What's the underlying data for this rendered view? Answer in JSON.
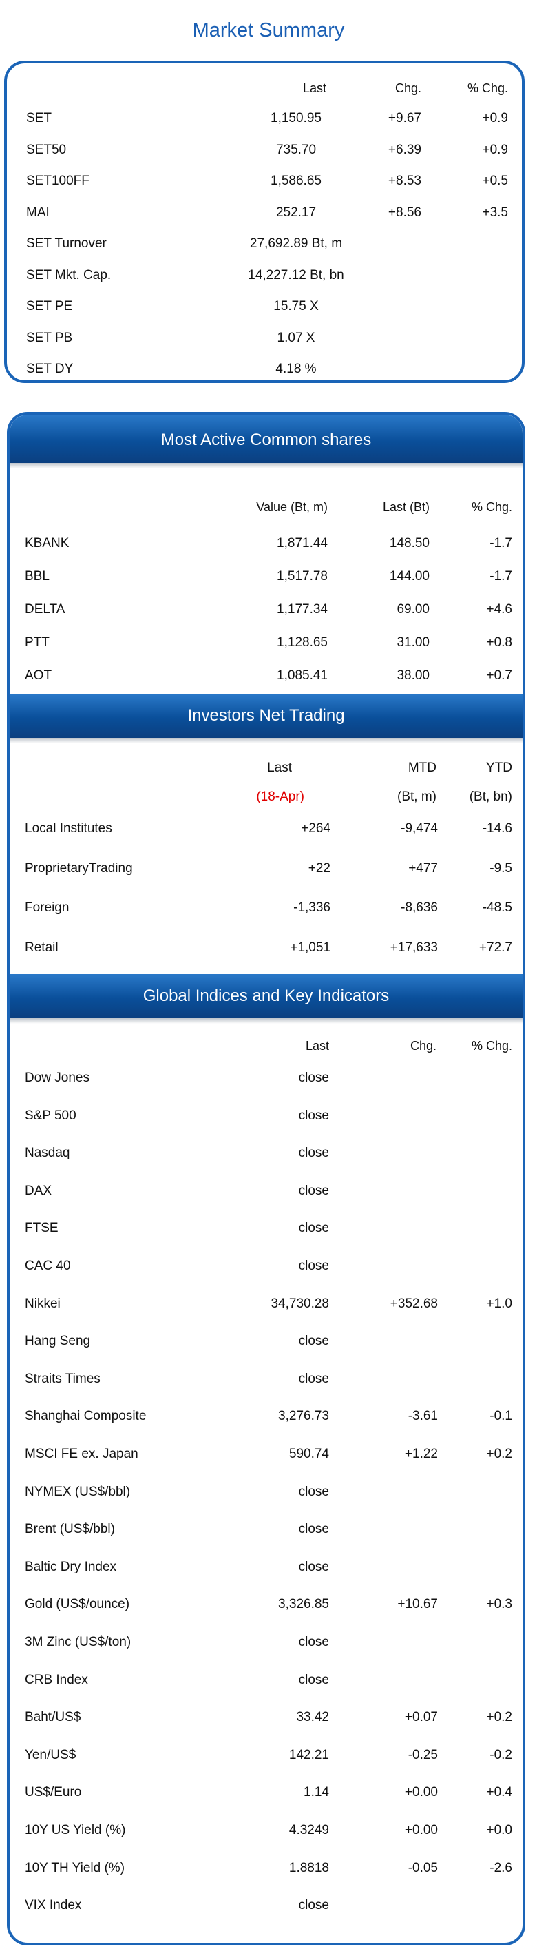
{
  "title": "Market Summary",
  "summary": {
    "headers": {
      "last": "Last",
      "chg": "Chg.",
      "pchg": "% Chg."
    },
    "rows": [
      {
        "name": "SET",
        "last": "1,150.95",
        "chg": "+9.67",
        "pchg": "+0.9"
      },
      {
        "name": "SET50",
        "last": "735.70",
        "chg": "+6.39",
        "pchg": "+0.9"
      },
      {
        "name": "SET100FF",
        "last": "1,586.65",
        "chg": "+8.53",
        "pchg": "+0.5"
      },
      {
        "name": "MAI",
        "last": "252.17",
        "chg": "+8.56",
        "pchg": "+3.5"
      },
      {
        "name": "SET  Turnover",
        "last": "27,692.89 Bt,  m",
        "chg": "",
        "pchg": ""
      },
      {
        "name": "SET  Mkt. Cap.",
        "last": "14,227.12 Bt,  bn",
        "chg": "",
        "pchg": ""
      },
      {
        "name": "SET  PE",
        "last": "15.75 X",
        "chg": "",
        "pchg": ""
      },
      {
        "name": "SET  PB",
        "last": "1.07 X",
        "chg": "",
        "pchg": ""
      },
      {
        "name": "SET  DY",
        "last": "4.18 %",
        "chg": "",
        "pchg": ""
      }
    ]
  },
  "most_active": {
    "title": "Most Active Common shares",
    "headers": {
      "value": "Value (Bt, m)",
      "last": "Last (Bt)",
      "pchg": "% Chg."
    },
    "rows": [
      {
        "name": "KBANK",
        "value": "1,871.44",
        "last": "148.50",
        "pchg": "-1.7"
      },
      {
        "name": "BBL",
        "value": "1,517.78",
        "last": "144.00",
        "pchg": "-1.7"
      },
      {
        "name": "DELTA",
        "value": "1,177.34",
        "last": "69.00",
        "pchg": "+4.6"
      },
      {
        "name": "PTT",
        "value": "1,128.65",
        "last": "31.00",
        "pchg": "+0.8"
      },
      {
        "name": "AOT",
        "value": "1,085.41",
        "last": "38.00",
        "pchg": "+0.7"
      }
    ]
  },
  "investors": {
    "title": "Investors Net Trading",
    "headers": {
      "last": "Last",
      "mtd": "MTD",
      "ytd": "YTD"
    },
    "subheaders": {
      "last": "(18-Apr)",
      "mtd": "(Bt,  m)",
      "ytd": "(Bt,  bn)"
    },
    "rows": [
      {
        "name": "Local Institutes",
        "last": "+264",
        "mtd": "-9,474",
        "ytd": "-14.6"
      },
      {
        "name": "ProprietaryTrading",
        "last": "+22",
        "mtd": "+477",
        "ytd": "-9.5"
      },
      {
        "name": "Foreign",
        "last": "-1,336",
        "mtd": "-8,636",
        "ytd": "-48.5"
      },
      {
        "name": "Retail",
        "last": "+1,051",
        "mtd": "+17,633",
        "ytd": "+72.7"
      }
    ]
  },
  "global": {
    "title": "Global Indices and Key Indicators",
    "headers": {
      "last": "Last",
      "chg": "Chg.",
      "pchg": "% Chg."
    },
    "rows": [
      {
        "name": "Dow Jones",
        "last": "close",
        "chg": "",
        "pchg": ""
      },
      {
        "name": "S&P 500",
        "last": "close",
        "chg": "",
        "pchg": ""
      },
      {
        "name": "Nasdaq",
        "last": "close",
        "chg": "",
        "pchg": ""
      },
      {
        "name": "DAX",
        "last": "close",
        "chg": "",
        "pchg": ""
      },
      {
        "name": "FTSE",
        "last": "close",
        "chg": "",
        "pchg": ""
      },
      {
        "name": "CAC 40",
        "last": "close",
        "chg": "",
        "pchg": ""
      },
      {
        "name": "Nikkei",
        "last": "34,730.28",
        "chg": "+352.68",
        "pchg": "+1.0"
      },
      {
        "name": "Hang Seng",
        "last": "close",
        "chg": "",
        "pchg": ""
      },
      {
        "name": "Straits Times",
        "last": "close",
        "chg": "",
        "pchg": ""
      },
      {
        "name": "Shanghai Composite",
        "last": "3,276.73",
        "chg": "-3.61",
        "pchg": "-0.1"
      },
      {
        "name": "MSCI FE ex. Japan",
        "last": "590.74",
        "chg": "+1.22",
        "pchg": "+0.2"
      },
      {
        "name": "NYMEX (US$/bbl)",
        "last": "close",
        "chg": "",
        "pchg": ""
      },
      {
        "name": "Brent (US$/bbl)",
        "last": "close",
        "chg": "",
        "pchg": ""
      },
      {
        "name": "Baltic Dry Index",
        "last": "close",
        "chg": "",
        "pchg": ""
      },
      {
        "name": "Gold (US$/ounce)",
        "last": "3,326.85",
        "chg": "+10.67",
        "pchg": "+0.3"
      },
      {
        "name": "3M Zinc (US$/ton)",
        "last": "close",
        "chg": "",
        "pchg": ""
      },
      {
        "name": "CRB Index",
        "last": "close",
        "chg": "",
        "pchg": ""
      },
      {
        "name": "Baht/US$",
        "last": "33.42",
        "chg": "+0.07",
        "pchg": "+0.2"
      },
      {
        "name": "Yen/US$",
        "last": "142.21",
        "chg": "-0.25",
        "pchg": "-0.2"
      },
      {
        "name": "US$/Euro",
        "last": "1.14",
        "chg": "+0.00",
        "pchg": "+0.4"
      },
      {
        "name": "10Y US Yield (%)",
        "last": "4.3249",
        "chg": "+0.00",
        "pchg": "+0.0"
      },
      {
        "name": "10Y TH Yield (%)",
        "last": "1.8818",
        "chg": "-0.05",
        "pchg": "-2.6"
      },
      {
        "name": "VIX Index",
        "last": "close",
        "chg": "",
        "pchg": ""
      }
    ]
  }
}
